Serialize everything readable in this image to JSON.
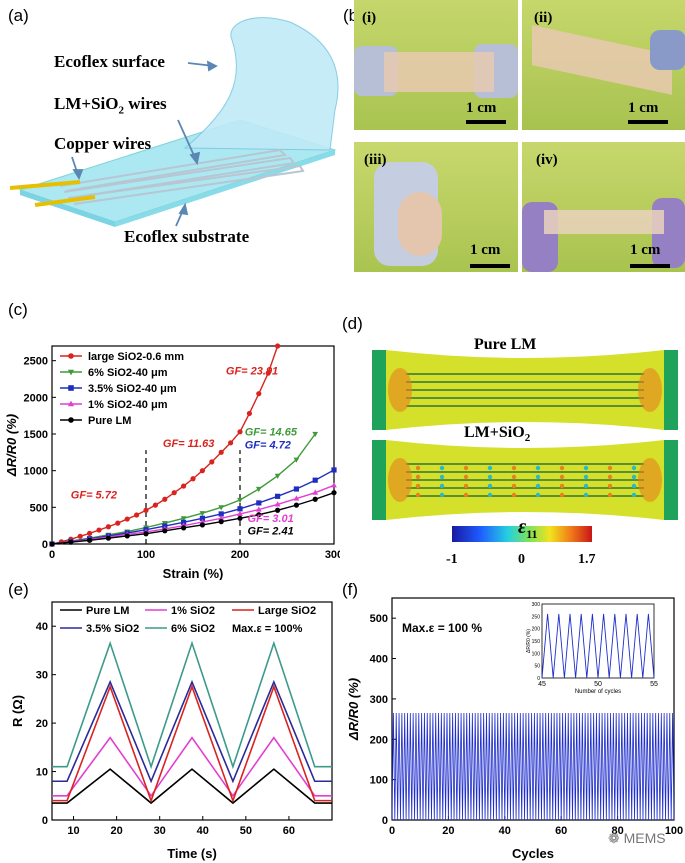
{
  "panels": {
    "a": {
      "label": "(a)",
      "annotations": {
        "ecoflex_surface": "Ecoflex surface",
        "lm_wires": "LM+SiO",
        "lm_wires_sub": "2",
        "lm_wires_suffix": " wires",
        "copper_wires": "Copper wires",
        "ecoflex_substrate": "Ecoflex substrate"
      }
    },
    "b": {
      "label": "(b)",
      "photos": [
        {
          "tag": "(i)",
          "scale": "1 cm"
        },
        {
          "tag": "(ii)",
          "scale": "1 cm"
        },
        {
          "tag": "(iii)",
          "scale": "1 cm"
        },
        {
          "tag": "(iv)",
          "scale": "1 cm"
        }
      ]
    },
    "c": {
      "label": "(c)"
    },
    "d": {
      "label": "(d)",
      "top_title": "Pure LM",
      "bottom_title": "LM+SiO",
      "bottom_title_sub": "2",
      "colorbar_symbol": "ε",
      "colorbar_sub": "11",
      "colorbar_ticks": [
        "-1",
        "0",
        "1.7"
      ],
      "colors": {
        "stripe": "#5a8f35",
        "body": "#d4e02a",
        "hot": "#e8821e",
        "clamp": "#1fa35a"
      }
    },
    "e": {
      "label": "(e)"
    },
    "f": {
      "label": "(f)"
    }
  },
  "watermark": "MEMS",
  "chart_data": [
    {
      "id": "c",
      "type": "line",
      "xlabel": "Strain (%)",
      "ylabel": "ΔR/R0 (%)",
      "xlim": [
        0,
        300
      ],
      "ylim": [
        0,
        2700
      ],
      "xticks": [
        0,
        100,
        200,
        300
      ],
      "yticks": [
        0,
        500,
        1000,
        1500,
        2000,
        2500
      ],
      "vlines": [
        100,
        200
      ],
      "series": [
        {
          "name": "large SiO2-0.6 mm",
          "color": "#d9231f",
          "marker": "circle",
          "x": [
            0,
            10,
            20,
            30,
            40,
            50,
            60,
            70,
            80,
            90,
            100,
            110,
            120,
            130,
            140,
            150,
            160,
            170,
            180,
            190,
            200,
            210,
            220,
            230,
            240
          ],
          "y": [
            0,
            30,
            65,
            105,
            145,
            190,
            235,
            285,
            340,
            395,
            460,
            530,
            610,
            700,
            790,
            890,
            1000,
            1120,
            1250,
            1380,
            1530,
            1780,
            2050,
            2330,
            2700
          ]
        },
        {
          "name": "6% SiO2-40 μm",
          "color": "#3f9a3c",
          "marker": "triangle-down",
          "x": [
            0,
            20,
            40,
            60,
            80,
            100,
            120,
            140,
            160,
            180,
            200,
            220,
            240,
            260,
            280
          ],
          "y": [
            0,
            40,
            80,
            125,
            170,
            225,
            285,
            350,
            420,
            500,
            600,
            750,
            930,
            1150,
            1500
          ]
        },
        {
          "name": "3.5% SiO2-40 μm",
          "color": "#1f2ebf",
          "marker": "square",
          "x": [
            0,
            20,
            40,
            60,
            80,
            100,
            120,
            140,
            160,
            180,
            200,
            220,
            240,
            260,
            280,
            300
          ],
          "y": [
            0,
            35,
            70,
            110,
            150,
            195,
            245,
            295,
            350,
            410,
            480,
            560,
            650,
            750,
            870,
            1010
          ]
        },
        {
          "name": "1% SiO2-40 μm",
          "color": "#e23fd2",
          "marker": "triangle-up",
          "x": [
            0,
            20,
            40,
            60,
            80,
            100,
            120,
            140,
            160,
            180,
            200,
            220,
            240,
            260,
            280,
            300
          ],
          "y": [
            0,
            30,
            60,
            95,
            130,
            165,
            205,
            250,
            300,
            350,
            410,
            470,
            540,
            620,
            700,
            800
          ]
        },
        {
          "name": "Pure LM",
          "color": "#000000",
          "marker": "circle",
          "x": [
            0,
            20,
            40,
            60,
            80,
            100,
            120,
            140,
            160,
            180,
            200,
            220,
            240,
            260,
            280,
            300
          ],
          "y": [
            0,
            25,
            50,
            80,
            110,
            140,
            180,
            220,
            260,
            305,
            350,
            400,
            460,
            530,
            610,
            700
          ]
        }
      ],
      "annotations": [
        {
          "text": "GF= 23.91",
          "color": "#d9231f",
          "x": 185,
          "y": 2310
        },
        {
          "text": "GF= 11.63",
          "color": "#d9231f",
          "x": 118,
          "y": 1320
        },
        {
          "text": "GF= 5.72",
          "color": "#d9231f",
          "x": 20,
          "y": 620
        },
        {
          "text": "GF= 14.65",
          "color": "#3f9a3c",
          "x": 205,
          "y": 1480
        },
        {
          "text": "GF= 4.72",
          "color": "#1f2ebf",
          "x": 205,
          "y": 1300
        },
        {
          "text": "GF= 3.01",
          "color": "#e23fd2",
          "x": 208,
          "y": 300
        },
        {
          "text": "GF= 2.41",
          "color": "#000000",
          "x": 208,
          "y": 130
        }
      ]
    },
    {
      "id": "e",
      "type": "line",
      "xlabel": "Time (s)",
      "ylabel": "R (Ω)",
      "xlim": [
        5,
        70
      ],
      "ylim": [
        0,
        45
      ],
      "xticks": [
        10,
        20,
        30,
        40,
        50,
        60
      ],
      "yticks": [
        0,
        10,
        20,
        30,
        40
      ],
      "note": "Max.ε = 100%",
      "series": [
        {
          "name": "Pure LM",
          "color": "#000000",
          "x": [
            5,
            8.5,
            18.5,
            28,
            37.5,
            47,
            56.5,
            66,
            70
          ],
          "y": [
            3.5,
            3.5,
            10.5,
            3.5,
            10.5,
            3.5,
            10.5,
            3.5,
            3.5
          ]
        },
        {
          "name": "1% SiO2",
          "color": "#e23fd2",
          "x": [
            5,
            8.5,
            18.5,
            28,
            37.5,
            47,
            56.5,
            66,
            70
          ],
          "y": [
            5,
            5,
            17,
            5,
            17,
            5,
            17,
            5,
            5
          ]
        },
        {
          "name": "Large SiO2",
          "color": "#d9231f",
          "x": [
            5,
            8.5,
            18.5,
            28,
            37.5,
            47,
            56.5,
            66,
            70
          ],
          "y": [
            4,
            4,
            27.5,
            4,
            27.5,
            4,
            27.5,
            4,
            4
          ]
        },
        {
          "name": "3.5% SiO2",
          "color": "#2a2a9a",
          "x": [
            5,
            8.5,
            18.5,
            28,
            37.5,
            47,
            56.5,
            66,
            70
          ],
          "y": [
            8,
            8,
            28.5,
            8,
            28.5,
            8,
            28.5,
            8,
            8
          ]
        },
        {
          "name": "6% SiO2",
          "color": "#3c9a8c",
          "x": [
            5,
            8.5,
            18.5,
            28,
            37.5,
            47,
            56.5,
            66,
            70
          ],
          "y": [
            11,
            11,
            36.5,
            11,
            36.5,
            11,
            36.5,
            11,
            11
          ]
        }
      ]
    },
    {
      "id": "f",
      "type": "line",
      "xlabel": "Cycles",
      "ylabel": "ΔR/R0 (%)",
      "xlim": [
        0,
        100
      ],
      "ylim": [
        0,
        550
      ],
      "xticks": [
        0,
        20,
        40,
        60,
        80,
        100
      ],
      "yticks": [
        0,
        100,
        200,
        300,
        400,
        500
      ],
      "note": "Max.ε = 100 %",
      "series": [
        {
          "name": "",
          "color": "#1f2ecc",
          "cycles": 100,
          "min": 0,
          "max": 265
        }
      ],
      "inset": {
        "xlabel": "Number of cycles",
        "ylabel": "ΔR/R0 (%)",
        "xlim": [
          45,
          55
        ],
        "ylim": [
          0,
          300
        ],
        "xticks": [
          45,
          50,
          55
        ],
        "yticks": [
          0,
          50,
          100,
          150,
          200,
          250,
          300
        ],
        "min": 0,
        "max": 260
      }
    }
  ]
}
